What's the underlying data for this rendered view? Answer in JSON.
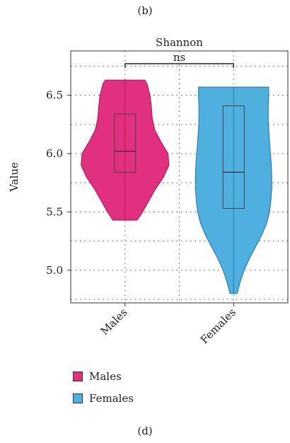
{
  "figure": {
    "panel_label_top": "(b)",
    "panel_label_bottom": "(d)"
  },
  "chart_data": {
    "type": "violin",
    "title": "Shannon",
    "ylabel": "Value",
    "xlabel": "",
    "categories": [
      "Males",
      "Females"
    ],
    "ylim": [
      4.72,
      6.88
    ],
    "yticks": [
      5.0,
      5.5,
      6.0,
      6.5
    ],
    "ytick_labels": [
      "5.0",
      "5.5",
      "6.0",
      "6.5"
    ],
    "grid": "dotted",
    "significance": {
      "label": "ns",
      "between": [
        "Males",
        "Females"
      ]
    },
    "series": [
      {
        "name": "Males",
        "color": "#E0307F",
        "min": 5.43,
        "q1": 5.84,
        "median": 6.02,
        "q3": 6.34,
        "max": 6.63,
        "density": [
          [
            5.43,
            0.28
          ],
          [
            5.5,
            0.4
          ],
          [
            5.6,
            0.55
          ],
          [
            5.7,
            0.7
          ],
          [
            5.8,
            0.88
          ],
          [
            5.9,
            1.0
          ],
          [
            6.0,
            0.98
          ],
          [
            6.1,
            0.82
          ],
          [
            6.2,
            0.68
          ],
          [
            6.3,
            0.62
          ],
          [
            6.4,
            0.6
          ],
          [
            6.5,
            0.57
          ],
          [
            6.6,
            0.5
          ],
          [
            6.63,
            0.45
          ]
        ]
      },
      {
        "name": "Females",
        "color": "#4FAFDF",
        "min": 4.8,
        "q1": 5.53,
        "median": 5.84,
        "q3": 6.41,
        "max": 6.57,
        "density": [
          [
            4.8,
            0.08
          ],
          [
            4.9,
            0.15
          ],
          [
            5.0,
            0.24
          ],
          [
            5.1,
            0.36
          ],
          [
            5.2,
            0.5
          ],
          [
            5.3,
            0.64
          ],
          [
            5.4,
            0.75
          ],
          [
            5.5,
            0.82
          ],
          [
            5.6,
            0.85
          ],
          [
            5.7,
            0.87
          ],
          [
            5.8,
            0.87
          ],
          [
            5.9,
            0.86
          ],
          [
            6.0,
            0.84
          ],
          [
            6.1,
            0.82
          ],
          [
            6.2,
            0.8
          ],
          [
            6.3,
            0.79
          ],
          [
            6.4,
            0.79
          ],
          [
            6.5,
            0.8
          ],
          [
            6.57,
            0.8
          ]
        ]
      }
    ],
    "legend": {
      "position": "bottom-left",
      "entries": [
        "Males",
        "Females"
      ]
    }
  }
}
